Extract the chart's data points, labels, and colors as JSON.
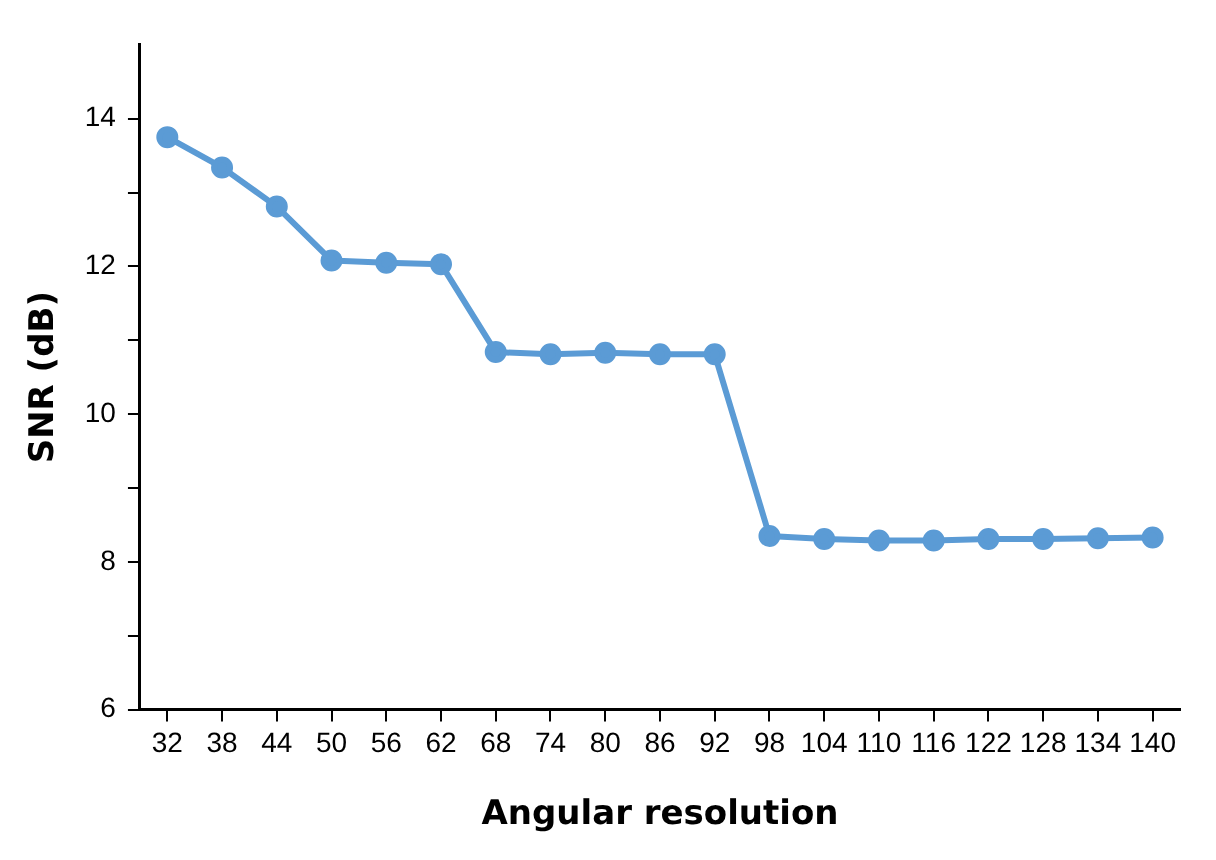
{
  "chart_data": {
    "type": "line",
    "xlabel": "Angular resolution",
    "ylabel": "SNR (dB)",
    "categories": [
      "32",
      "38",
      "44",
      "50",
      "56",
      "62",
      "68",
      "74",
      "80",
      "86",
      "92",
      "98",
      "104",
      "110",
      "116",
      "122",
      "128",
      "134",
      "140"
    ],
    "series": [
      {
        "color": "#5b9bd5",
        "values": [
          13.75,
          13.34,
          12.81,
          12.08,
          12.05,
          12.03,
          10.84,
          10.81,
          10.83,
          10.81,
          10.81,
          8.35,
          8.31,
          8.29,
          8.29,
          8.31,
          8.31,
          8.32,
          8.33
        ]
      }
    ],
    "ylim": [
      6,
      15
    ],
    "yticks": [
      6,
      {
        "value": 7,
        "label": null
      },
      8,
      {
        "value": 9,
        "label": null
      },
      10,
      {
        "value": 11,
        "label": null
      },
      12,
      {
        "value": 13,
        "label": null
      },
      14
    ],
    "marker": "circle",
    "line_style": "solid",
    "grid": false,
    "legend": false
  }
}
